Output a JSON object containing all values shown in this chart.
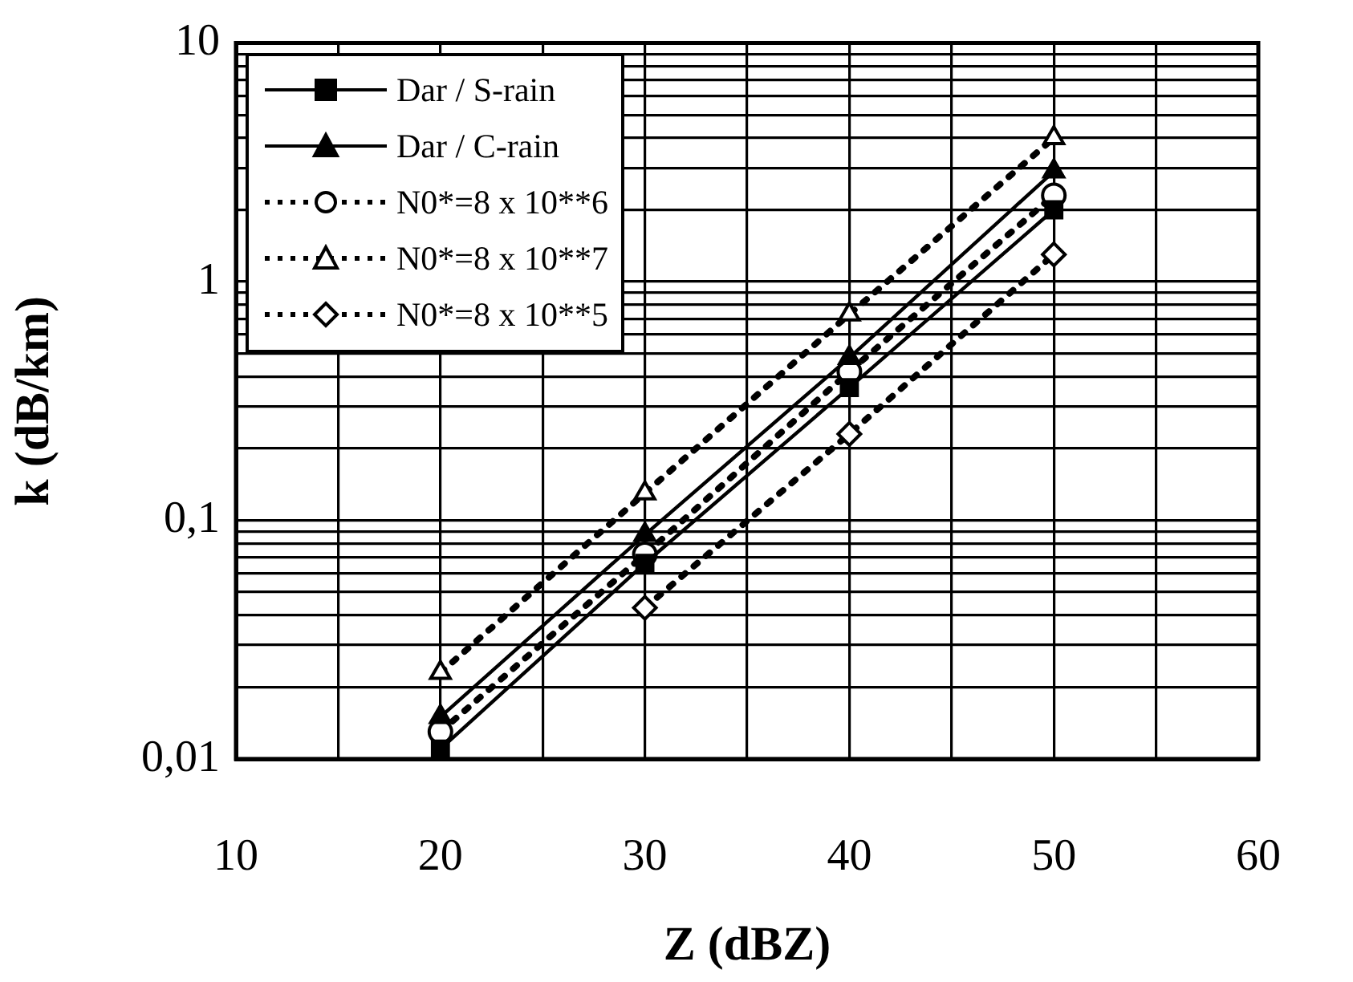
{
  "chart_data": {
    "type": "line",
    "xlabel": "Z (dBZ)",
    "ylabel": "k (dB/km)",
    "log": "y",
    "grid": true,
    "legend": "top left",
    "xlim": [
      10,
      60
    ],
    "xticks": [
      10,
      {
        "value": 15,
        "label": null
      },
      20,
      {
        "value": 25,
        "label": null
      },
      30,
      {
        "value": 35,
        "label": null
      },
      40,
      {
        "value": 45,
        "label": null
      },
      50,
      {
        "value": 55,
        "label": null
      },
      60
    ],
    "ylim": [
      0.01,
      10
    ],
    "yticks": [
      {
        "value": 0.01,
        "label": "0,01"
      },
      {
        "value": 0.02,
        "label": null
      },
      {
        "value": 0.03,
        "label": null
      },
      {
        "value": 0.04,
        "label": null
      },
      {
        "value": 0.05,
        "label": null
      },
      {
        "value": 0.06,
        "label": null
      },
      {
        "value": 0.07,
        "label": null
      },
      {
        "value": 0.08,
        "label": null
      },
      {
        "value": 0.09,
        "label": null
      },
      {
        "value": 0.1,
        "label": "0,1"
      },
      {
        "value": 0.2,
        "label": null
      },
      {
        "value": 0.3,
        "label": null
      },
      {
        "value": 0.4,
        "label": null
      },
      {
        "value": 0.5,
        "label": null
      },
      {
        "value": 0.6,
        "label": null
      },
      {
        "value": 0.7,
        "label": null
      },
      {
        "value": 0.8,
        "label": null
      },
      {
        "value": 0.9,
        "label": null
      },
      1,
      {
        "value": 2,
        "label": null
      },
      {
        "value": 3,
        "label": null
      },
      {
        "value": 4,
        "label": null
      },
      {
        "value": 5,
        "label": null
      },
      {
        "value": 6,
        "label": null
      },
      {
        "value": 7,
        "label": null
      },
      {
        "value": 8,
        "label": null
      },
      {
        "value": 9,
        "label": null
      },
      10
    ],
    "x": [
      20,
      30,
      40,
      50
    ],
    "series": [
      {
        "name": "Dar / S-rain",
        "color": "#000000",
        "marker": "square",
        "line_style": "solid",
        "values": [
          0.011,
          0.066,
          0.36,
          2.0
        ]
      },
      {
        "name": "Dar / C-rain",
        "color": "#000000",
        "marker": "triangle",
        "line_style": "solid",
        "values": [
          0.015,
          0.087,
          0.48,
          2.9
        ]
      },
      {
        "name": "N0*=8 x 10**6",
        "color": "#000000",
        "marker": "circle",
        "line_style": "dotted",
        "values": [
          0.013,
          0.072,
          0.42,
          2.3
        ]
      },
      {
        "name": "N0*=8 x 10**7",
        "color": "#000000",
        "marker": "triangle",
        "line_style": "dotted",
        "values": [
          0.023,
          0.13,
          0.73,
          4.0
        ]
      },
      {
        "name": "N0*=8 x 10**5",
        "color": "#000000",
        "marker": "diamond",
        "line_style": "dotted",
        "values": [
          null,
          0.043,
          0.23,
          1.3
        ]
      }
    ]
  }
}
